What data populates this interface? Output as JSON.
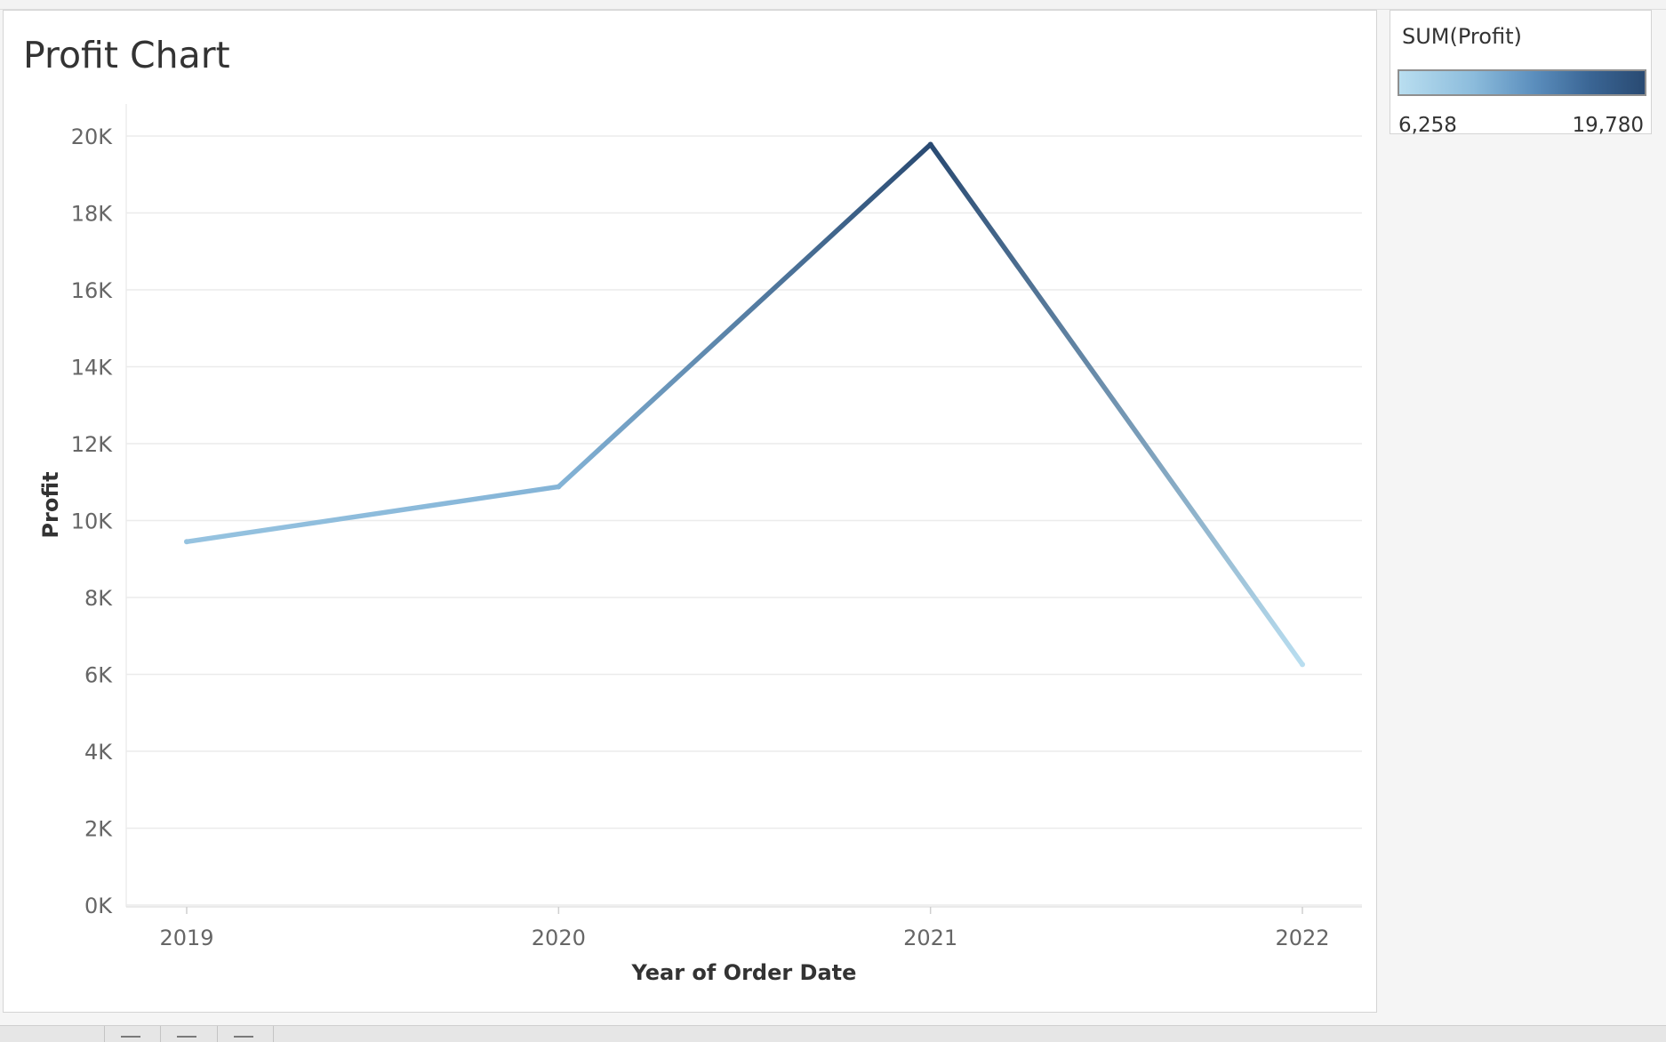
{
  "chart_data": {
    "type": "line",
    "title": "Profit Chart",
    "xlabel": "Year of Order Date",
    "ylabel": "Profit",
    "x": [
      "2019",
      "2020",
      "2021",
      "2022"
    ],
    "values": [
      9450,
      10880,
      19780,
      6258
    ],
    "ylim": [
      0,
      20800
    ],
    "yticks": [
      0,
      2000,
      4000,
      6000,
      8000,
      10000,
      12000,
      14000,
      16000,
      18000,
      20000
    ],
    "ytick_labels": [
      "0K",
      "2K",
      "4K",
      "6K",
      "8K",
      "10K",
      "12K",
      "14K",
      "16K",
      "18K",
      "20K"
    ],
    "grid": true,
    "color_legend": {
      "title": "SUM(Profit)",
      "min_label": "6,258",
      "max_label": "19,780",
      "min_value": 6258,
      "max_value": 19780,
      "color_low": "#b9def0",
      "color_high": "#294a72",
      "placement": "top-right"
    }
  },
  "colors": {
    "gridline": "#ebebeb",
    "axis_text": "#666666",
    "label_text": "#333333"
  }
}
